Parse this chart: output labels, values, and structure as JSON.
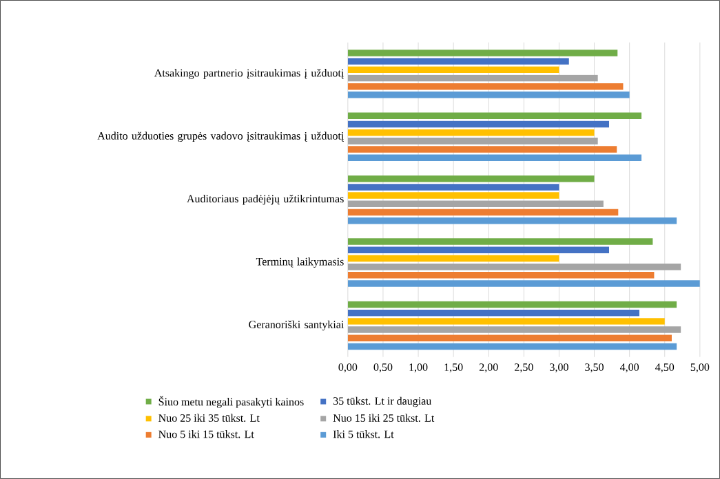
{
  "chart_data": {
    "type": "bar",
    "orientation": "horizontal",
    "categories": [
      "Atsakingo partnerio įsitraukimas į užduotį",
      "Audito užduoties grupės vadovo įsitraukimas į užduotį",
      "Auditoriaus padėjėjų užtikrintumas",
      "Terminų laikymasis",
      "Geranoriški santykiai"
    ],
    "series": [
      {
        "name": "Šiuo metu negali pasakyti kainos",
        "color": "#70ad47",
        "values": [
          3.83,
          4.17,
          3.5,
          4.33,
          4.67
        ]
      },
      {
        "name": "35 tūkst. Lt ir daugiau",
        "color": "#4472c4",
        "values": [
          3.14,
          3.71,
          3.0,
          3.71,
          4.14
        ]
      },
      {
        "name": "Nuo 25 iki 35 tūkst. Lt",
        "color": "#ffc000",
        "values": [
          3.0,
          3.5,
          3.0,
          3.0,
          4.5
        ]
      },
      {
        "name": "Nuo 15 iki 25 tūkst. Lt",
        "color": "#a5a5a5",
        "values": [
          3.55,
          3.55,
          3.63,
          4.73,
          4.73
        ]
      },
      {
        "name": "Nuo 5 iki 15 tūkst. Lt",
        "color": "#ed7d31",
        "values": [
          3.91,
          3.82,
          3.84,
          4.35,
          4.6
        ]
      },
      {
        "name": "Iki 5 tūkst. Lt",
        "color": "#5b9bd5",
        "values": [
          4.0,
          4.17,
          4.67,
          5.0,
          4.67
        ]
      }
    ],
    "xlim": [
      0,
      5
    ],
    "xticks": [
      {
        "value": 0,
        "label": "0,00"
      },
      {
        "value": 0.5,
        "label": "0,50"
      },
      {
        "value": 1,
        "label": "1,00"
      },
      {
        "value": 1.5,
        "label": "1,50"
      },
      {
        "value": 2,
        "label": "2,00"
      },
      {
        "value": 2.5,
        "label": "2,50"
      },
      {
        "value": 3,
        "label": "3,00"
      },
      {
        "value": 3.5,
        "label": "3,50"
      },
      {
        "value": 4,
        "label": "4,00"
      },
      {
        "value": 4.5,
        "label": "4,50"
      },
      {
        "value": 5,
        "label": "5,00"
      }
    ],
    "grid": "x",
    "legend": "bottom"
  }
}
